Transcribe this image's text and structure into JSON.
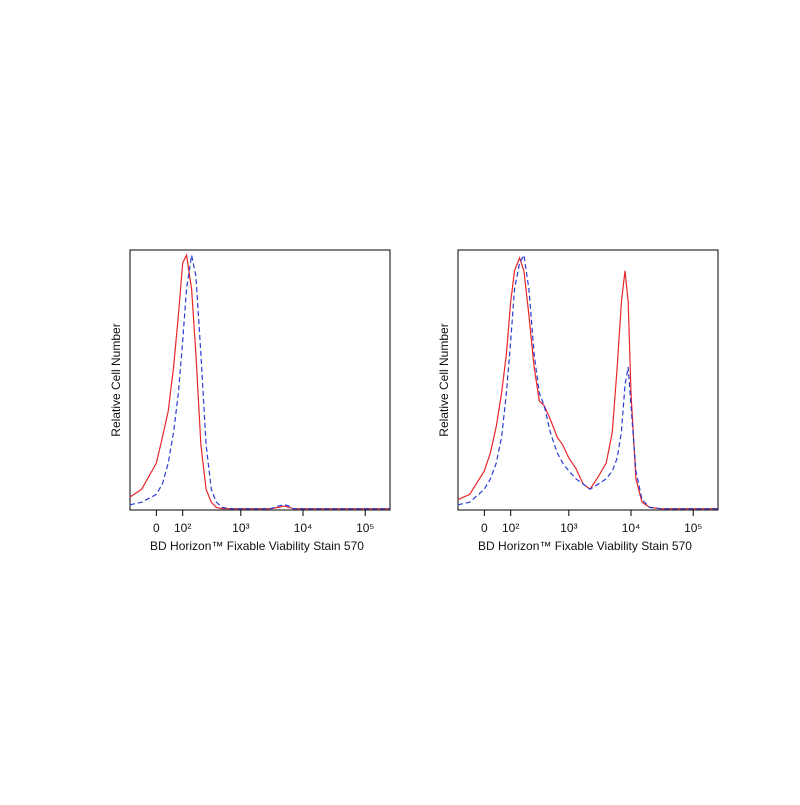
{
  "chart_data": [
    {
      "type": "line",
      "xscale": "biexponential",
      "xlabel": "BD Horizon™ Fixable Viability Stain 570",
      "ylabel": "Relative Cell Number",
      "xlim": [
        -100,
        250000
      ],
      "ylim": [
        0,
        100
      ],
      "xticks": [
        0,
        {
          "value": 100,
          "label": "10²"
        },
        {
          "value": 1000,
          "label": "10³"
        },
        {
          "value": 10000,
          "label": "10⁴"
        },
        {
          "value": 100000,
          "label": "10⁵"
        }
      ],
      "x": [
        -100,
        -50,
        0,
        20,
        40,
        60,
        80,
        100,
        120,
        150,
        180,
        220,
        270,
        330,
        400,
        500,
        650,
        800,
        1000,
        1300,
        1700,
        2200,
        3000,
        4000,
        5000,
        6000,
        7000,
        8000,
        9000,
        10000,
        12000,
        15000,
        20000,
        30000,
        50000,
        100000,
        250000
      ],
      "series": [
        {
          "color": "#e8262a",
          "line_style": "solid",
          "values": [
            5,
            8,
            18,
            28,
            38,
            55,
            75,
            95,
            98,
            85,
            60,
            25,
            8,
            3,
            1,
            0.5,
            0.5,
            0.5,
            0.5,
            0.5,
            0.5,
            0.5,
            0.5,
            1,
            1.5,
            1,
            0.5,
            0.5,
            0.5,
            0.5,
            0.5,
            0.5,
            0.5,
            0.5,
            0.5,
            0.5,
            0.5
          ]
        },
        {
          "color": "#2b3bd6",
          "line_style": "dashed",
          "values": [
            2,
            3,
            6,
            10,
            18,
            30,
            45,
            65,
            85,
            98,
            90,
            60,
            25,
            8,
            3,
            1,
            0.5,
            0.5,
            0.5,
            0.5,
            0.5,
            0.5,
            0.5,
            1.5,
            2,
            1.5,
            0.5,
            0.5,
            0.5,
            0.5,
            0.5,
            0.5,
            0.5,
            0.5,
            0.5,
            0.5,
            0.5
          ]
        }
      ]
    },
    {
      "type": "line",
      "xscale": "biexponential",
      "xlabel": "BD Horizon™ Fixable Viability Stain 570",
      "ylabel": "Relative Cell Number",
      "xlim": [
        -100,
        250000
      ],
      "ylim": [
        0,
        100
      ],
      "xticks": [
        0,
        {
          "value": 100,
          "label": "10²"
        },
        {
          "value": 1000,
          "label": "10³"
        },
        {
          "value": 10000,
          "label": "10⁴"
        },
        {
          "value": 100000,
          "label": "10⁵"
        }
      ],
      "x": [
        -100,
        -50,
        0,
        20,
        40,
        60,
        80,
        100,
        120,
        150,
        180,
        220,
        270,
        330,
        400,
        500,
        650,
        800,
        1000,
        1300,
        1700,
        2200,
        3000,
        4000,
        5000,
        6000,
        7000,
        8000,
        9000,
        10000,
        12000,
        15000,
        20000,
        30000,
        50000,
        100000,
        250000
      ],
      "series": [
        {
          "color": "#e8262a",
          "line_style": "solid",
          "values": [
            4,
            6,
            15,
            22,
            32,
            45,
            60,
            80,
            92,
            97,
            92,
            75,
            55,
            42,
            40,
            35,
            28,
            25,
            20,
            16,
            10,
            8,
            13,
            18,
            30,
            55,
            80,
            92,
            80,
            45,
            12,
            3,
            1,
            0.5,
            0.5,
            0.5,
            0.5
          ]
        },
        {
          "color": "#2b3bd6",
          "line_style": "dashed",
          "values": [
            2,
            3,
            8,
            12,
            18,
            28,
            45,
            65,
            85,
            95,
            98,
            85,
            60,
            45,
            40,
            30,
            22,
            18,
            15,
            12,
            10,
            8,
            10,
            12,
            15,
            20,
            30,
            48,
            55,
            40,
            15,
            4,
            1,
            0.5,
            0.5,
            0.5,
            0.5
          ]
        }
      ]
    }
  ]
}
